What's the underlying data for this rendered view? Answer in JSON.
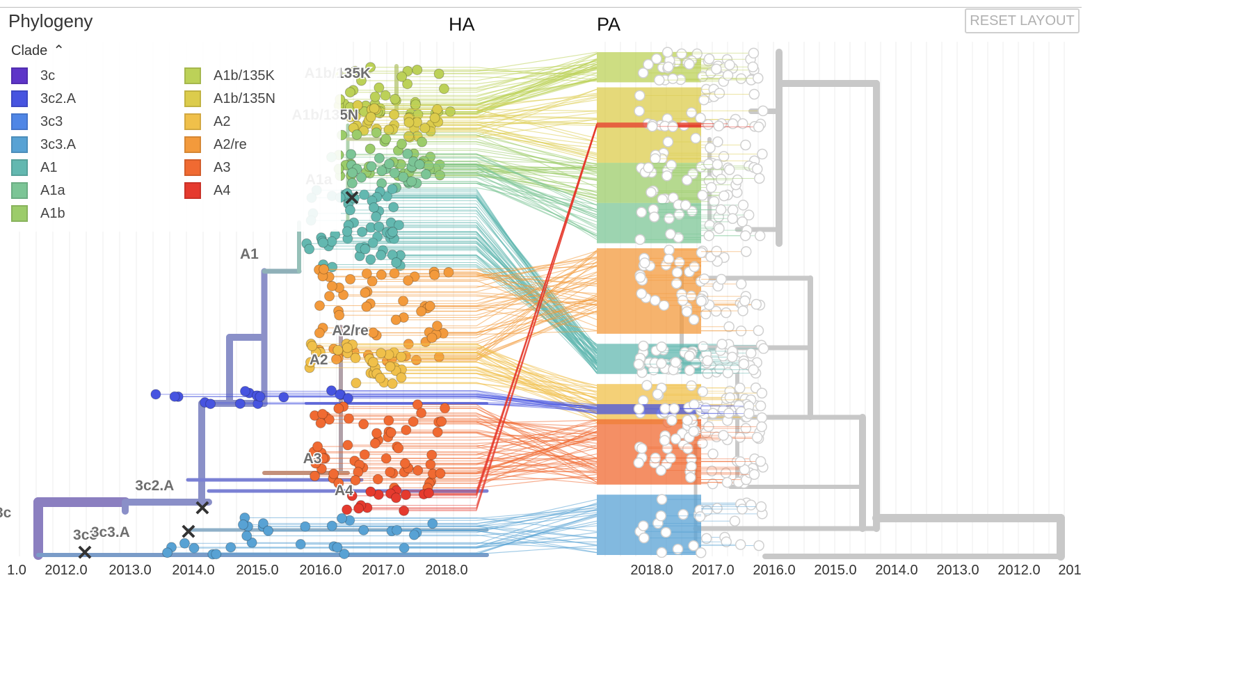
{
  "panel": {
    "title": "Phylogeny",
    "reset_label": "RESET LAYOUT"
  },
  "legend": {
    "title": "Clade",
    "toggle_icon": "chevron-up-icon",
    "items": [
      {
        "label": "3c",
        "color": "#5e35c8"
      },
      {
        "label": "3c2.A",
        "color": "#4754e0"
      },
      {
        "label": "3c3",
        "color": "#4f86e6"
      },
      {
        "label": "3c3.A",
        "color": "#58a2d4"
      },
      {
        "label": "A1",
        "color": "#63b8b0"
      },
      {
        "label": "A1a",
        "color": "#7cc596"
      },
      {
        "label": "A1b",
        "color": "#9ccc6a"
      },
      {
        "label": "A1b/135K",
        "color": "#bcd158"
      },
      {
        "label": "A1b/135N",
        "color": "#dccc4c"
      },
      {
        "label": "A2",
        "color": "#f0c04a"
      },
      {
        "label": "A2/re",
        "color": "#f39a3c"
      },
      {
        "label": "A3",
        "color": "#f06a32"
      },
      {
        "label": "A4",
        "color": "#e53a2e"
      }
    ]
  },
  "chart_data": {
    "type": "tanglegram",
    "trees": [
      {
        "name": "HA",
        "x_ticks": [
          "1.0",
          "2012.0",
          "2013.0",
          "2014.0",
          "2015.0",
          "2016.0",
          "2017.0",
          "2018.0"
        ],
        "x_direction": "left-to-right"
      },
      {
        "name": "PA",
        "x_ticks": [
          "2018.0",
          "2017.0",
          "2016.0",
          "2015.0",
          "2014.0",
          "2013.0",
          "2012.0",
          "201"
        ],
        "x_direction": "right-to-left",
        "tip_color": "#ffffff",
        "branch_color": "#cccccc"
      }
    ],
    "clade_labels": [
      {
        "text": "3c",
        "x": 2011.2
      },
      {
        "text": "3c3",
        "x": 2012.5
      },
      {
        "text": "3c3.A",
        "x": 2012.9
      },
      {
        "text": "3c2.A",
        "x": 2013.6
      },
      {
        "text": "A1",
        "x": 2015.1
      },
      {
        "text": "A1a",
        "x": 2016.2
      },
      {
        "text": "A1b/135K",
        "x": 2016.5
      },
      {
        "text": "A1b/135N",
        "x": 2016.3
      },
      {
        "text": "A2",
        "x": 2016.2
      },
      {
        "text": "A2/re",
        "x": 2016.7
      },
      {
        "text": "A3",
        "x": 2016.1
      },
      {
        "text": "A4",
        "x": 2016.6
      }
    ],
    "clade_groups": [
      {
        "clade": "A1b/135K",
        "tips": 40,
        "x_range": [
          2016.5,
          2018.3
        ],
        "ha_band": [
          0.03,
          0.13
        ],
        "pa_band": [
          0.0,
          0.06
        ]
      },
      {
        "clade": "A1b/135N",
        "tips": 30,
        "x_range": [
          2016.7,
          2018.1
        ],
        "ha_band": [
          0.1,
          0.17
        ],
        "pa_band": [
          0.07,
          0.22
        ]
      },
      {
        "clade": "A1b",
        "tips": 35,
        "x_range": [
          2016.4,
          2018.2
        ],
        "ha_band": [
          0.16,
          0.25
        ],
        "pa_band": [
          0.22,
          0.3
        ]
      },
      {
        "clade": "A1a",
        "tips": 25,
        "x_range": [
          2016.4,
          2018.0
        ],
        "ha_band": [
          0.2,
          0.27
        ],
        "pa_band": [
          0.3,
          0.38
        ]
      },
      {
        "clade": "A1",
        "tips": 60,
        "x_range": [
          2016.0,
          2017.5
        ],
        "ha_band": [
          0.27,
          0.43
        ],
        "pa_band": [
          0.58,
          0.64
        ]
      },
      {
        "clade": "A2/re",
        "tips": 55,
        "x_range": [
          2016.2,
          2018.3
        ],
        "ha_band": [
          0.43,
          0.62
        ],
        "pa_band": [
          0.39,
          0.56
        ]
      },
      {
        "clade": "A2",
        "tips": 35,
        "x_range": [
          2016.0,
          2017.6
        ],
        "ha_band": [
          0.58,
          0.66
        ],
        "pa_band": [
          0.66,
          0.74
        ]
      },
      {
        "clade": "3c2.A",
        "tips": 16,
        "x_range": [
          2013.5,
          2017.3
        ],
        "ha_band": [
          0.67,
          0.7
        ],
        "pa_band": [
          0.7,
          0.72
        ]
      },
      {
        "clade": "A3",
        "tips": 60,
        "x_range": [
          2016.1,
          2018.2
        ],
        "ha_band": [
          0.7,
          0.87
        ],
        "pa_band": [
          0.73,
          0.86
        ]
      },
      {
        "clade": "A4",
        "tips": 14,
        "x_range": [
          2016.6,
          2018.0
        ],
        "ha_band": [
          0.87,
          0.92
        ],
        "pa_band": [
          0.14,
          0.15
        ]
      },
      {
        "clade": "3c3.A",
        "tips": 30,
        "x_range": [
          2013.8,
          2018.2
        ],
        "ha_band": [
          0.92,
          1.0
        ],
        "pa_band": [
          0.88,
          1.0
        ]
      }
    ]
  }
}
